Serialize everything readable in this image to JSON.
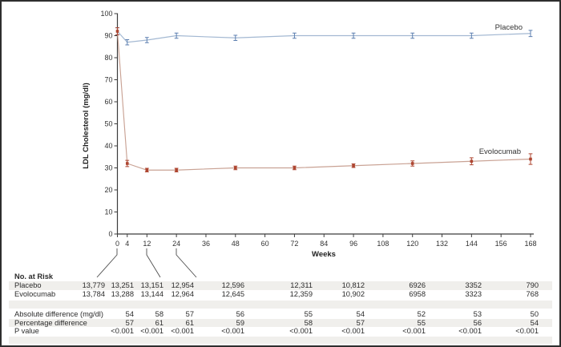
{
  "chart_data": {
    "type": "line",
    "title": "",
    "xlabel": "Weeks",
    "ylabel": "LDL Cholesterol (mg/dl)",
    "xlim": [
      0,
      168
    ],
    "ylim": [
      0,
      100
    ],
    "grid": false,
    "x_ticks": [
      0,
      4,
      12,
      24,
      36,
      48,
      60,
      72,
      84,
      96,
      108,
      120,
      132,
      144,
      156,
      168
    ],
    "y_ticks": [
      0,
      10,
      20,
      30,
      40,
      50,
      60,
      70,
      80,
      90,
      100
    ],
    "x": [
      0,
      4,
      12,
      24,
      48,
      72,
      96,
      120,
      144,
      168
    ],
    "series": [
      {
        "name": "Placebo",
        "values": [
          92,
          87,
          88,
          90,
          89,
          90,
          90,
          90,
          90,
          91
        ],
        "err": [
          1.6,
          1.2,
          1.2,
          1.2,
          1.2,
          1.2,
          1.2,
          1.2,
          1.2,
          1.4
        ],
        "line_color": "#a3b8d2",
        "accent_color": "#5c7fb0",
        "marker": "none",
        "legend_position": "above line, right end"
      },
      {
        "name": "Evolocumab",
        "values": [
          92,
          32,
          29,
          29,
          30,
          30,
          31,
          32,
          33,
          34
        ],
        "err": [
          1.6,
          1.4,
          0.8,
          0.8,
          0.8,
          0.8,
          0.8,
          1.2,
          1.6,
          2.4
        ],
        "line_color": "#c9a294",
        "accent_color": "#ae4631",
        "marker": "square",
        "legend_position": "above line, right end"
      }
    ],
    "colors": {
      "axis": "#3c3c3c",
      "callout": "#4d4d4d"
    }
  },
  "risk_table": {
    "header": "No. at Risk",
    "band_color": "#f0efec",
    "columns_weeks": [
      0,
      4,
      12,
      24,
      48,
      72,
      96,
      120,
      144,
      168
    ],
    "rows": [
      {
        "label": "Placebo",
        "values": [
          "13,779",
          "13,251",
          "13,151",
          "12,954",
          "12,596",
          "12,311",
          "10,812",
          "6926",
          "3352",
          "790"
        ]
      },
      {
        "label": "Evolocumab",
        "values": [
          "13,784",
          "13,288",
          "13,144",
          "12,964",
          "12,645",
          "12,359",
          "10,902",
          "6958",
          "3323",
          "768"
        ]
      }
    ],
    "stat_rows": [
      {
        "label": "Absolute difference (mg/dl)",
        "values": [
          "54",
          "58",
          "57",
          "56",
          "55",
          "54",
          "52",
          "53",
          "50"
        ]
      },
      {
        "label": "Percentage difference",
        "values": [
          "57",
          "61",
          "61",
          "59",
          "58",
          "57",
          "55",
          "56",
          "54"
        ]
      },
      {
        "label": "P value",
        "values": [
          "<0.001",
          "<0.001",
          "<0.001",
          "<0.001",
          "<0.001",
          "<0.001",
          "<0.001",
          "<0.001",
          "<0.001"
        ]
      }
    ]
  }
}
